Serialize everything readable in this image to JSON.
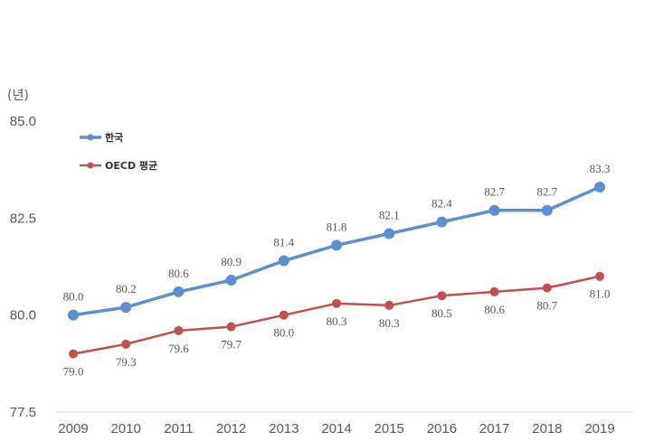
{
  "chart_data": {
    "type": "line",
    "unit_label": "(년)",
    "x": [
      "2009",
      "2010",
      "2011",
      "2012",
      "2013",
      "2014",
      "2015",
      "2016",
      "2017",
      "2018",
      "2019"
    ],
    "ylim": [
      77.5,
      85.0
    ],
    "yticks": [
      "77.5",
      "80.0",
      "82.5",
      "85.0"
    ],
    "legend_position": "top-left",
    "series": [
      {
        "name": "한국",
        "color": "#5B8FD0",
        "values": [
          80.0,
          80.2,
          80.6,
          80.9,
          81.4,
          81.8,
          82.1,
          82.4,
          82.7,
          82.7,
          83.3
        ],
        "labels": [
          "80.0",
          "80.2",
          "80.6",
          "80.9",
          "81.4",
          "81.8",
          "82.1",
          "82.4",
          "82.7",
          "82.7",
          "83.3"
        ],
        "label_side": "above"
      },
      {
        "name": "OECD 평균",
        "color": "#C0504D",
        "values": [
          79.0,
          79.25,
          79.6,
          79.7,
          80.0,
          80.3,
          80.25,
          80.5,
          80.6,
          80.7,
          81.0
        ],
        "labels": [
          "79.0",
          "79.3",
          "79.6",
          "79.7",
          "80.0",
          "80.3",
          "80.3",
          "80.5",
          "80.6",
          "80.7",
          "81.0"
        ],
        "label_side": "below"
      }
    ]
  }
}
